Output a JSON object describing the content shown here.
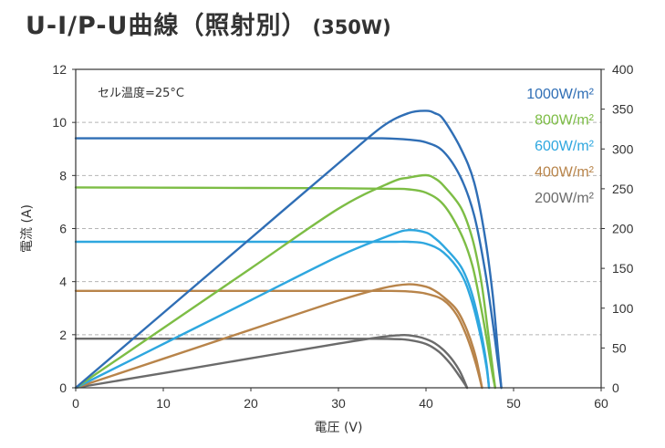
{
  "title": "U-I/P-U曲線",
  "subtitle_paren": "（照射別）",
  "subtitle_power": "(350W)",
  "chart_data": {
    "type": "line",
    "xlabel": "電圧 (V)",
    "ylabel": "電流 (A)",
    "xlim": [
      0,
      60
    ],
    "ylim": [
      0,
      12
    ],
    "y2lim": [
      0,
      400
    ],
    "xticks": [
      "0",
      "10",
      "20",
      "30",
      "40",
      "50",
      "60"
    ],
    "yticks": [
      "0",
      "2",
      "4",
      "6",
      "8",
      "10",
      "12"
    ],
    "y2ticks": [
      "0",
      "50",
      "100",
      "150",
      "200",
      "250",
      "300",
      "350",
      "400"
    ],
    "grid": "horizontal dashed",
    "annotation": "セル温度=25°C",
    "legend_position": "top-right",
    "series": [
      {
        "name": "1000W/m²",
        "color": "#2f6eb5",
        "current_curve": [
          [
            0,
            9.4
          ],
          [
            10,
            9.4
          ],
          [
            20,
            9.4
          ],
          [
            30,
            9.4
          ],
          [
            35,
            9.4
          ],
          [
            38,
            9.35
          ],
          [
            40,
            9.25
          ],
          [
            42,
            8.9
          ],
          [
            44,
            7.9
          ],
          [
            45.5,
            6.5
          ],
          [
            46.7,
            4.5
          ],
          [
            47.6,
            2.5
          ],
          [
            48.2,
            1.0
          ],
          [
            48.6,
            0
          ]
        ],
        "power_curve": [
          [
            0,
            0
          ],
          [
            10,
            94
          ],
          [
            20,
            188
          ],
          [
            30,
            282
          ],
          [
            35,
            328
          ],
          [
            38,
            345
          ],
          [
            40,
            348
          ],
          [
            41,
            345
          ],
          [
            42,
            337
          ],
          [
            44,
            300
          ],
          [
            45.5,
            258
          ],
          [
            46.7,
            192
          ],
          [
            47.6,
            118
          ],
          [
            48.2,
            48
          ],
          [
            48.6,
            0
          ]
        ]
      },
      {
        "name": "800W/m²",
        "color": "#7dbd45",
        "current_curve": [
          [
            0,
            7.55
          ],
          [
            10,
            7.54
          ],
          [
            20,
            7.53
          ],
          [
            30,
            7.52
          ],
          [
            36,
            7.5
          ],
          [
            38,
            7.48
          ],
          [
            40,
            7.35
          ],
          [
            42,
            6.9
          ],
          [
            44,
            5.8
          ],
          [
            45.3,
            4.6
          ],
          [
            46.3,
            3.0
          ],
          [
            47.1,
            1.5
          ],
          [
            47.6,
            0.5
          ],
          [
            47.9,
            0
          ]
        ],
        "power_curve": [
          [
            0,
            0
          ],
          [
            10,
            75
          ],
          [
            20,
            150
          ],
          [
            30,
            225
          ],
          [
            36,
            258
          ],
          [
            38,
            264
          ],
          [
            40,
            267
          ],
          [
            41,
            263
          ],
          [
            42,
            254
          ],
          [
            44,
            226
          ],
          [
            45.3,
            187
          ],
          [
            46.3,
            134
          ],
          [
            47.1,
            68
          ],
          [
            47.6,
            25
          ],
          [
            47.9,
            0
          ]
        ]
      },
      {
        "name": "600W/m²",
        "color": "#2ea7df",
        "current_curve": [
          [
            0,
            5.5
          ],
          [
            10,
            5.5
          ],
          [
            20,
            5.5
          ],
          [
            30,
            5.5
          ],
          [
            36,
            5.5
          ],
          [
            38,
            5.5
          ],
          [
            40,
            5.43
          ],
          [
            42,
            5.1
          ],
          [
            44,
            4.3
          ],
          [
            45.2,
            3.3
          ],
          [
            46.2,
            2.0
          ],
          [
            46.9,
            0.8
          ],
          [
            47.2,
            0
          ]
        ],
        "power_curve": [
          [
            0,
            0
          ],
          [
            10,
            55
          ],
          [
            20,
            110
          ],
          [
            30,
            165
          ],
          [
            36,
            192
          ],
          [
            38,
            198
          ],
          [
            40,
            195
          ],
          [
            41,
            188
          ],
          [
            42,
            178
          ],
          [
            44,
            152
          ],
          [
            45.2,
            120
          ],
          [
            46.2,
            75
          ],
          [
            46.9,
            31
          ],
          [
            47.2,
            0
          ]
        ]
      },
      {
        "name": "400W/m²",
        "color": "#b8844a",
        "current_curve": [
          [
            0,
            3.65
          ],
          [
            10,
            3.65
          ],
          [
            20,
            3.65
          ],
          [
            30,
            3.65
          ],
          [
            36,
            3.65
          ],
          [
            38,
            3.63
          ],
          [
            40,
            3.55
          ],
          [
            42,
            3.3
          ],
          [
            43.5,
            2.75
          ],
          [
            44.7,
            1.9
          ],
          [
            45.7,
            0.9
          ],
          [
            46.4,
            0
          ]
        ],
        "power_curve": [
          [
            0,
            0
          ],
          [
            10,
            36.5
          ],
          [
            20,
            73
          ],
          [
            30,
            109.5
          ],
          [
            35,
            125
          ],
          [
            38,
            130
          ],
          [
            40,
            127
          ],
          [
            41,
            122
          ],
          [
            42,
            114
          ],
          [
            43.5,
            98
          ],
          [
            44.7,
            72
          ],
          [
            45.7,
            38
          ],
          [
            46.4,
            0
          ]
        ]
      },
      {
        "name": "200W/m²",
        "color": "#6b6b6b",
        "current_curve": [
          [
            0,
            1.85
          ],
          [
            10,
            1.85
          ],
          [
            20,
            1.85
          ],
          [
            30,
            1.85
          ],
          [
            36,
            1.84
          ],
          [
            38,
            1.8
          ],
          [
            40,
            1.65
          ],
          [
            41.5,
            1.35
          ],
          [
            42.8,
            0.9
          ],
          [
            43.9,
            0.4
          ],
          [
            44.7,
            0
          ]
        ],
        "power_curve": [
          [
            0,
            0
          ],
          [
            10,
            18.5
          ],
          [
            20,
            37
          ],
          [
            30,
            55.5
          ],
          [
            35,
            64
          ],
          [
            37,
            66
          ],
          [
            38,
            66
          ],
          [
            39.5,
            63
          ],
          [
            41,
            56
          ],
          [
            42.5,
            42
          ],
          [
            43.8,
            22
          ],
          [
            44.7,
            0
          ]
        ]
      }
    ]
  }
}
